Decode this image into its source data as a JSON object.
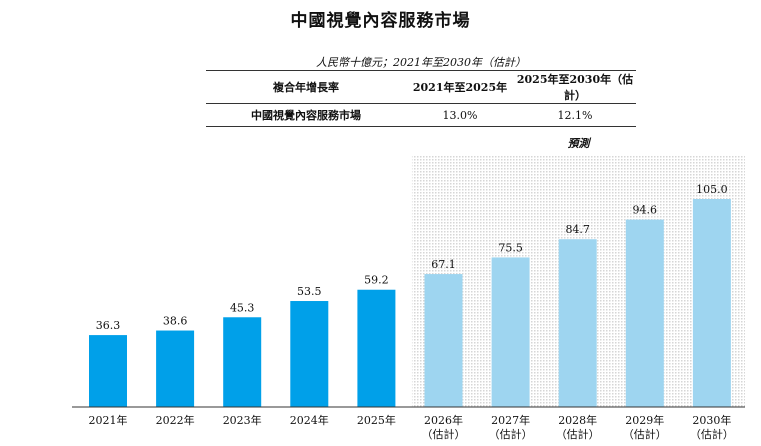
{
  "title": "中國視覺內容服務市場",
  "unit_note": "人民幣十億元；2021年至2030年（估計）",
  "cagr_table": {
    "header": [
      "複合年增長率",
      "2021年至2025年",
      "2025年至2030年（估計）"
    ],
    "rows": [
      [
        "中國視覺內容服務市場",
        "13.0%",
        "12.1%"
      ]
    ]
  },
  "colors": {
    "historical": "#00a0e9",
    "forecast": "#9ed5f0",
    "forecast_bg": "#e8e8e8"
  },
  "chart_data": {
    "type": "bar",
    "title": "中國視覺內容服務市場",
    "categories": [
      [
        "2021年"
      ],
      [
        "2022年"
      ],
      [
        "2023年"
      ],
      [
        "2024年"
      ],
      [
        "2025年"
      ],
      [
        "2026年",
        "（估計）"
      ],
      [
        "2027年",
        "（估計）"
      ],
      [
        "2028年",
        "（估計）"
      ],
      [
        "2029年",
        "（估計）"
      ],
      [
        "2030年",
        "（估計）"
      ]
    ],
    "values": [
      36.3,
      38.6,
      45.3,
      53.5,
      59.2,
      67.1,
      75.5,
      84.7,
      94.6,
      105.0
    ],
    "value_labels": [
      "36.3",
      "38.6",
      "45.3",
      "53.5",
      "59.2",
      "67.1",
      "75.5",
      "84.7",
      "94.6",
      "105.0"
    ],
    "forecast_label": "預測",
    "forecast_start_category": "2026年",
    "xlabel": "",
    "ylabel": "",
    "ylim": [
      0,
      105.0
    ],
    "grid": false,
    "legend": "none"
  }
}
